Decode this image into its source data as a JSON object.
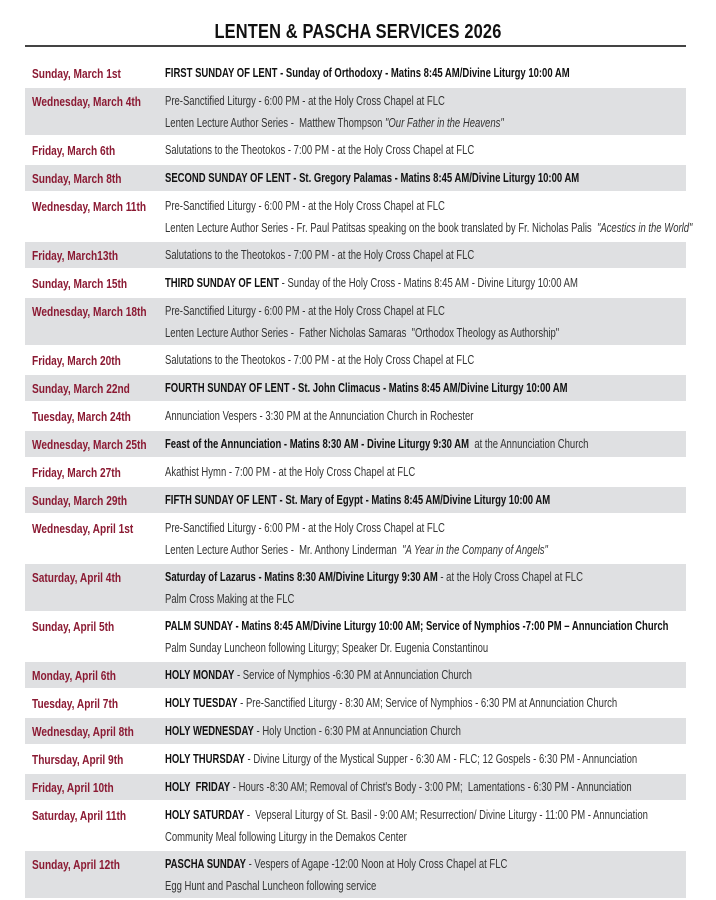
{
  "title": "LENTEN & PASCHA SERVICES 2026",
  "colors": {
    "date": "#8b1a33",
    "row_shade": "#dfe0e2",
    "text": "#333333"
  },
  "rows": [
    {
      "date": "Sunday, March 1st",
      "shaded": false,
      "lines": [
        [
          {
            "t": "FIRST SUNDAY OF LENT - Sunday of Orthodoxy - Matins 8:45 AM/Divine Liturgy 10:00 AM",
            "s": "b"
          }
        ]
      ]
    },
    {
      "date": "Wednesday, March 4th",
      "shaded": true,
      "lines": [
        [
          {
            "t": "Pre-Sanctified Liturgy - 6:00 PM - at the Holy Cross Chapel at FLC",
            "s": ""
          }
        ],
        [
          {
            "t": "Lenten Lecture Author Series -  Matthew Thompson ",
            "s": ""
          },
          {
            "t": "\"Our Father in the Heavens\"",
            "s": "i"
          }
        ]
      ]
    },
    {
      "date": "Friday, March 6th",
      "shaded": false,
      "lines": [
        [
          {
            "t": "Salutations to the Theotokos - 7:00 PM - at the Holy Cross Chapel at FLC",
            "s": ""
          }
        ]
      ]
    },
    {
      "date": "Sunday, March 8th",
      "shaded": true,
      "lines": [
        [
          {
            "t": "SECOND SUNDAY OF LENT - St. Gregory Palamas - Matins 8:45 AM/Divine Liturgy 10:00 AM",
            "s": "b"
          }
        ]
      ]
    },
    {
      "date": "Wednesday, March 11th",
      "shaded": false,
      "lines": [
        [
          {
            "t": "Pre-Sanctified Liturgy - 6:00 PM - at the Holy Cross Chapel at FLC",
            "s": ""
          }
        ],
        [
          {
            "t": "Lenten Lecture Author Series - Fr. Paul Patitsas speaking on the book translated by Fr. Nicholas Palis  ",
            "s": ""
          },
          {
            "t": "\"Acestics in the World\"",
            "s": "i"
          }
        ]
      ]
    },
    {
      "date": "Friday, March13th",
      "shaded": true,
      "lines": [
        [
          {
            "t": "Salutations to the Theotokos - 7:00 PM - at the Holy Cross Chapel at FLC",
            "s": ""
          }
        ]
      ]
    },
    {
      "date": "Sunday, March 15th",
      "shaded": false,
      "lines": [
        [
          {
            "t": "THIRD SUNDAY OF LENT",
            "s": "b"
          },
          {
            "t": " - Sunday of the Holy Cross - Matins 8:45 AM - Divine Liturgy 10:00 AM",
            "s": ""
          }
        ]
      ]
    },
    {
      "date": "Wednesday, March 18th",
      "shaded": true,
      "lines": [
        [
          {
            "t": "Pre-Sanctified Liturgy - 6:00 PM - at the Holy Cross Chapel at FLC",
            "s": ""
          }
        ],
        [
          {
            "t": "Lenten Lecture Author Series -  Father Nicholas Samaras  \"Orthodox Theology as Authorship\"",
            "s": ""
          }
        ]
      ]
    },
    {
      "date": "Friday, March 20th",
      "shaded": false,
      "lines": [
        [
          {
            "t": "Salutations to the Theotokos - 7:00 PM - at the Holy Cross Chapel at FLC",
            "s": ""
          }
        ]
      ]
    },
    {
      "date": "Sunday, March 22nd",
      "shaded": true,
      "lines": [
        [
          {
            "t": "FOURTH SUNDAY OF LENT - St. John Climacus - Matins 8:45 AM/Divine Liturgy 10:00 AM",
            "s": "b"
          }
        ]
      ]
    },
    {
      "date": "Tuesday, March 24th",
      "shaded": false,
      "lines": [
        [
          {
            "t": "Annunciation Vespers - 3:30 PM at the Annunciation Church in Rochester",
            "s": ""
          }
        ]
      ]
    },
    {
      "date": "Wednesday, March 25th",
      "shaded": true,
      "lines": [
        [
          {
            "t": "Feast of the Annunciation - Matins 8:30 AM - Divine Liturgy 9:30 AM",
            "s": "b"
          },
          {
            "t": "  at the Annunciation Church",
            "s": ""
          }
        ]
      ]
    },
    {
      "date": "Friday, March 27th",
      "shaded": false,
      "lines": [
        [
          {
            "t": "Akathist Hymn - 7:00 PM - at the Holy Cross Chapel at FLC",
            "s": ""
          }
        ]
      ]
    },
    {
      "date": "Sunday, March 29th",
      "shaded": true,
      "lines": [
        [
          {
            "t": "FIFTH SUNDAY OF LENT - St. Mary of Egypt - Matins 8:45 AM/Divine Liturgy 10:00 AM",
            "s": "b"
          }
        ]
      ]
    },
    {
      "date": "Wednesday, April 1st",
      "shaded": false,
      "lines": [
        [
          {
            "t": "Pre-Sanctified Liturgy - 6:00 PM - at the Holy Cross Chapel at FLC",
            "s": ""
          }
        ],
        [
          {
            "t": "Lenten Lecture Author Series -  Mr. Anthony Linderman  ",
            "s": ""
          },
          {
            "t": "\"A Year in the Company of Angels\"",
            "s": "i"
          }
        ]
      ]
    },
    {
      "date": "Saturday, April 4th",
      "shaded": true,
      "lines": [
        [
          {
            "t": "Saturday of Lazarus - Matins 8:30 AM/Divine Liturgy 9:30 AM",
            "s": "b"
          },
          {
            "t": " - at the Holy Cross Chapel at FLC",
            "s": ""
          }
        ],
        [
          {
            "t": "Palm Cross Making at the FLC",
            "s": ""
          }
        ]
      ]
    },
    {
      "date": "Sunday, April 5th",
      "shaded": false,
      "lines": [
        [
          {
            "t": "PALM SUNDAY - Matins 8:45 AM/Divine Liturgy 10:00 AM; Service of Nymphios -7:00 PM – Annunciation Church",
            "s": "b"
          }
        ],
        [
          {
            "t": "Palm Sunday Luncheon following Liturgy; Speaker Dr. Eugenia Constantinou",
            "s": ""
          }
        ]
      ]
    },
    {
      "date": "Monday, April 6th",
      "shaded": true,
      "lines": [
        [
          {
            "t": "HOLY MONDAY",
            "s": "b"
          },
          {
            "t": " - Service of Nymphios -6:30 PM at Annunciation Church",
            "s": ""
          }
        ]
      ]
    },
    {
      "date": "Tuesday, April 7th",
      "shaded": false,
      "lines": [
        [
          {
            "t": "HOLY TUESDAY",
            "s": "b"
          },
          {
            "t": " - Pre-Sanctified Liturgy - 8:30 AM; Service of Nymphios - 6:30 PM at Annunciation Church",
            "s": ""
          }
        ]
      ]
    },
    {
      "date": "Wednesday, April 8th",
      "shaded": true,
      "lines": [
        [
          {
            "t": "HOLY WEDNESDAY",
            "s": "b"
          },
          {
            "t": " - Holy Unction - 6:30 PM at Annunciation Church",
            "s": ""
          }
        ]
      ]
    },
    {
      "date": "Thursday, April 9th",
      "shaded": false,
      "lines": [
        [
          {
            "t": "HOLY THURSDAY",
            "s": "b"
          },
          {
            "t": " - Divine Liturgy of the Mystical Supper - 6:30 AM - FLC; 12 Gospels - 6:30 PM - Annunciation",
            "s": ""
          }
        ]
      ]
    },
    {
      "date": "Friday, April 10th",
      "shaded": true,
      "lines": [
        [
          {
            "t": "HOLY  FRIDAY",
            "s": "b"
          },
          {
            "t": " - Hours -8:30 AM; Removal of Christ's Body - 3:00 PM;  Lamentations - 6:30 PM - Annunciation",
            "s": ""
          }
        ]
      ]
    },
    {
      "date": "Saturday, April 11th",
      "shaded": false,
      "lines": [
        [
          {
            "t": "HOLY SATURDAY",
            "s": "b"
          },
          {
            "t": " -  Vepseral Liturgy of St. Basil - 9:00 AM; Resurrection/ Divine Liturgy - 11:00 PM - Annunciation",
            "s": ""
          }
        ],
        [
          {
            "t": "Community Meal following Liturgy in the Demakos Center",
            "s": ""
          }
        ]
      ]
    },
    {
      "date": "Sunday, April 12th",
      "shaded": true,
      "lines": [
        [
          {
            "t": "PASCHA SUNDAY",
            "s": "b"
          },
          {
            "t": " - Vespers of Agape -12:00 Noon at Holy Cross Chapel at FLC",
            "s": ""
          }
        ],
        [
          {
            "t": "Egg Hunt and Paschal Luncheon following service",
            "s": ""
          }
        ]
      ]
    }
  ]
}
